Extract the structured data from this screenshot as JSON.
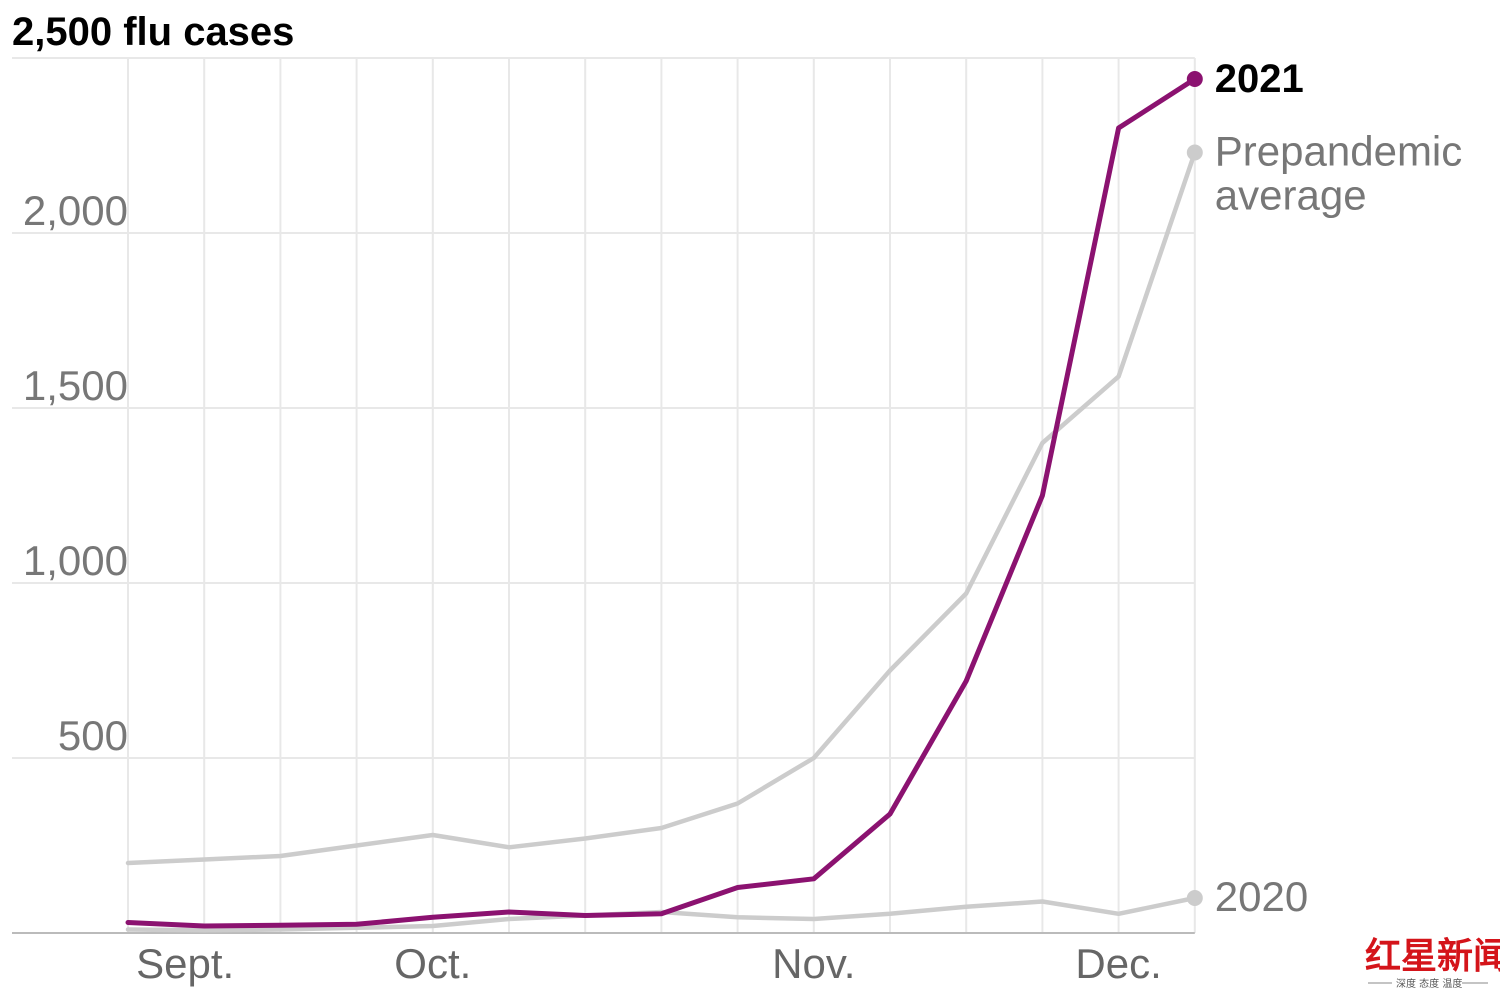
{
  "chart_data": {
    "type": "line",
    "title": "2,500 flu cases",
    "xlabel": "",
    "ylabel": "",
    "ylim": [
      0,
      2500
    ],
    "y_ticks": [
      500,
      1000,
      1500,
      2000
    ],
    "y_tick_labels": [
      "500",
      "1,000",
      "1,500",
      "2,000"
    ],
    "x_ticks": [
      "Sept.",
      "Oct.",
      "Nov.",
      "Dec."
    ],
    "x_tick_week_index": [
      0.75,
      4,
      9,
      13
    ],
    "weeks": 15,
    "series": [
      {
        "name": "2021",
        "label": "2021",
        "color": "#8b1270",
        "values": [
          30,
          20,
          22,
          25,
          45,
          60,
          50,
          55,
          130,
          155,
          340,
          720,
          1250,
          2300,
          2440
        ]
      },
      {
        "name": "Prepandemic average",
        "label": [
          "Prepandemic",
          "average"
        ],
        "color": "#cccccc",
        "values": [
          200,
          210,
          220,
          250,
          280,
          245,
          270,
          300,
          370,
          500,
          750,
          970,
          1400,
          1590,
          2230
        ]
      },
      {
        "name": "2020",
        "label": "2020",
        "color": "#cccccc",
        "values": [
          10,
          8,
          10,
          15,
          20,
          40,
          50,
          60,
          45,
          40,
          55,
          75,
          90,
          55,
          100
        ]
      }
    ]
  },
  "watermark": {
    "main": "红星新闻",
    "sub": "深度 态度 温度"
  }
}
